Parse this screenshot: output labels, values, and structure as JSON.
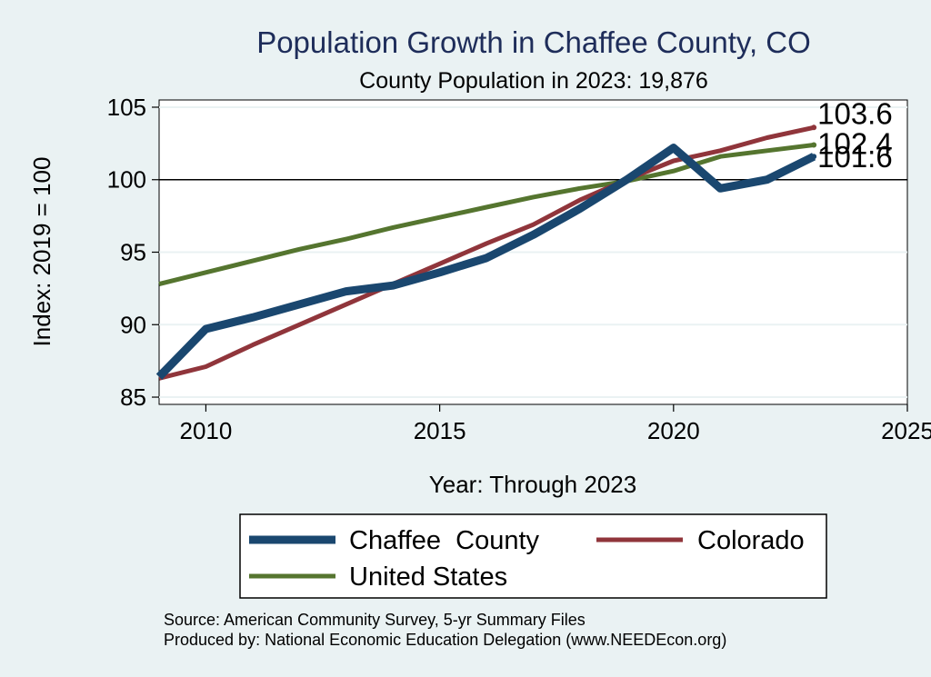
{
  "chart_data": {
    "type": "line",
    "title": "Population Growth in Chaffee County, CO",
    "subtitle": "County Population in 2023: 19,876",
    "xlabel": "Year: Through 2023",
    "ylabel": "Index: 2019 = 100",
    "xlim": [
      2009,
      2025
    ],
    "ylim": [
      84.5,
      105.5
    ],
    "xticks": [
      2010,
      2015,
      2020,
      2025
    ],
    "yticks": [
      85,
      90,
      95,
      100,
      105
    ],
    "reference_line": 100,
    "series": [
      {
        "name": "Chaffee  County",
        "color": "#1a476f",
        "x": [
          2009,
          2010,
          2011,
          2012,
          2013,
          2014,
          2015,
          2016,
          2017,
          2018,
          2019,
          2020,
          2021,
          2022,
          2023
        ],
        "values": [
          86.4,
          89.7,
          90.5,
          91.4,
          92.3,
          92.7,
          93.6,
          94.6,
          96.2,
          98.0,
          100.0,
          102.2,
          99.4,
          100.0,
          101.6
        ],
        "end_label": "101.6"
      },
      {
        "name": "Colorado",
        "color": "#90353b",
        "x": [
          2009,
          2010,
          2011,
          2012,
          2013,
          2014,
          2015,
          2016,
          2017,
          2018,
          2019,
          2020,
          2021,
          2022,
          2023
        ],
        "values": [
          86.3,
          87.1,
          88.6,
          90.0,
          91.4,
          92.8,
          94.2,
          95.6,
          96.9,
          98.6,
          100.0,
          101.3,
          102.0,
          102.9,
          103.6
        ],
        "end_label": "103.6"
      },
      {
        "name": "United States",
        "color": "#55752f",
        "x": [
          2009,
          2010,
          2011,
          2012,
          2013,
          2014,
          2015,
          2016,
          2017,
          2018,
          2019,
          2020,
          2021,
          2022,
          2023
        ],
        "values": [
          92.8,
          93.6,
          94.4,
          95.2,
          95.9,
          96.7,
          97.4,
          98.1,
          98.8,
          99.4,
          99.9,
          100.6,
          101.6,
          102.0,
          102.4
        ],
        "end_label": "102.4"
      }
    ],
    "legend": {
      "position": "bottom",
      "entries": [
        "Chaffee  County",
        "Colorado",
        "United States"
      ]
    },
    "source_lines": [
      "Source: American Community Survey, 5-yr Summary Files",
      "Produced by: National Economic Education Delegation (www.NEEDEcon.org)"
    ]
  }
}
